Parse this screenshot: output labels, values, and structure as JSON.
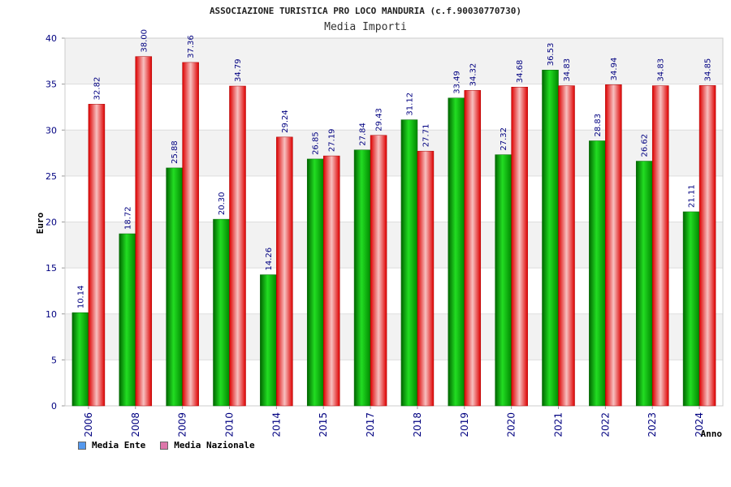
{
  "chart_data": {
    "type": "bar",
    "title": "ASSOCIAZIONE TURISTICA PRO LOCO MANDURIA (c.f.90030770730)",
    "subtitle": "Media Importi",
    "xlabel": "Anno",
    "ylabel": "Euro",
    "ylim": [
      0,
      40
    ],
    "yticks": [
      "0",
      "5",
      "10",
      "15",
      "20",
      "25",
      "30",
      "35",
      "40"
    ],
    "grid": true,
    "legend_position": "bottom-left",
    "categories": [
      "2006",
      "2008",
      "2009",
      "2010",
      "2014",
      "2015",
      "2017",
      "2018",
      "2019",
      "2020",
      "2021",
      "2022",
      "2023",
      "2024"
    ],
    "series": [
      {
        "name": "Media Ente",
        "color": "#00aa00",
        "legend_color": "#5599ee",
        "values": [
          10.14,
          18.72,
          25.88,
          20.3,
          14.26,
          26.85,
          27.84,
          31.12,
          33.49,
          27.32,
          36.53,
          28.83,
          26.62,
          21.11
        ],
        "labels": [
          "10.14",
          "18.72",
          "25.88",
          "20.30",
          "14.26",
          "26.85",
          "27.84",
          "31.12",
          "33.49",
          "27.32",
          "36.53",
          "28.83",
          "26.62",
          "21.11"
        ]
      },
      {
        "name": "Media Nazionale",
        "color": "#ee0000",
        "legend_color": "#dd77aa",
        "values": [
          32.82,
          38.0,
          37.36,
          34.79,
          29.24,
          27.19,
          29.43,
          27.71,
          34.32,
          34.68,
          34.83,
          34.94,
          34.83,
          34.85
        ],
        "labels": [
          "32.82",
          "38.00",
          "37.36",
          "34.79",
          "29.24",
          "27.19",
          "29.43",
          "27.71",
          "34.32",
          "34.68",
          "34.83",
          "34.94",
          "34.83",
          "34.85"
        ]
      }
    ]
  }
}
